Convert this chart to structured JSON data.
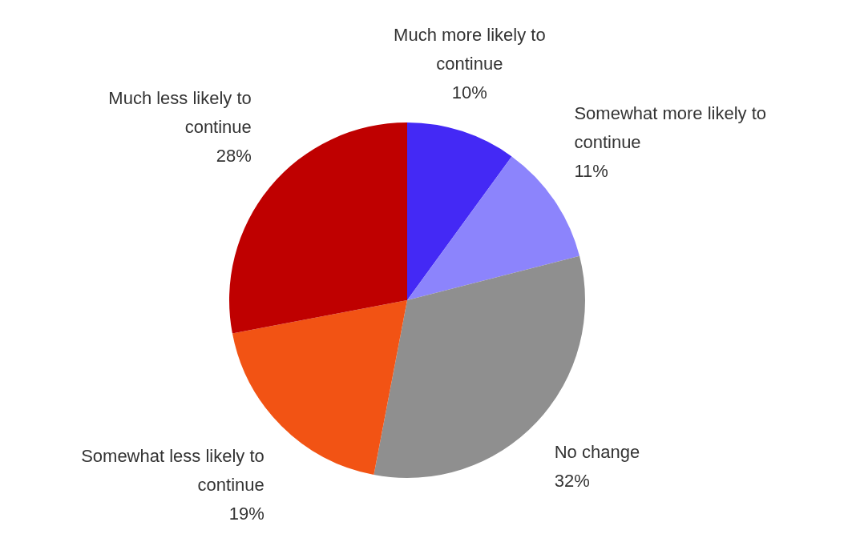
{
  "chart_data": {
    "type": "pie",
    "categories": [
      "Much more likely to continue",
      "Somewhat more likely to continue",
      "No change",
      "Somewhat less likely to continue",
      "Much less likely to continue"
    ],
    "values": [
      10,
      11,
      32,
      19,
      28
    ],
    "colors": [
      "#4429f5",
      "#8c84fc",
      "#8f8f8f",
      "#f25314",
      "#bf0000"
    ],
    "value_labels": [
      "10%",
      "11%",
      "32%",
      "19%",
      "28%"
    ]
  }
}
